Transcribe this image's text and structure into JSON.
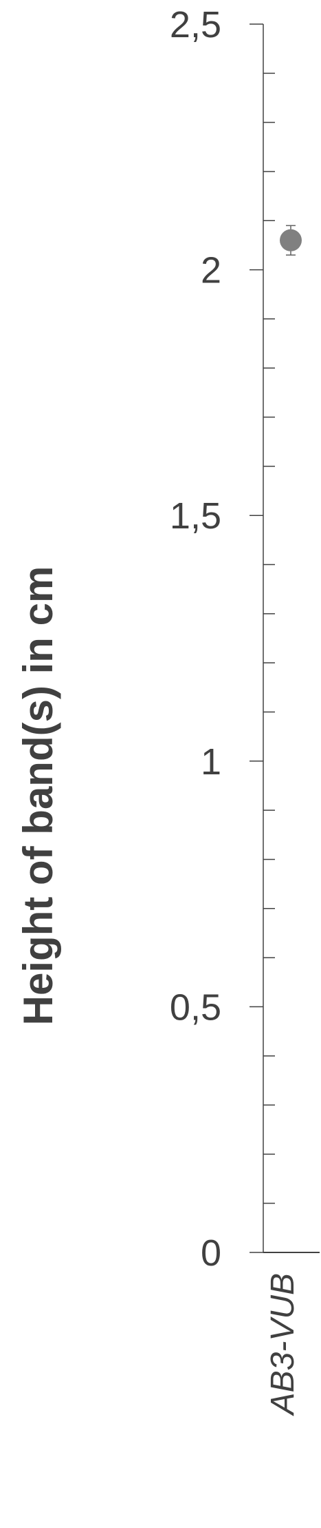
{
  "chart_data": {
    "type": "scatter",
    "title": "",
    "ylabel": "Height of band(s) in cm",
    "xlabel": "",
    "ylim": [
      0,
      2.5
    ],
    "y_major_step": 0.5,
    "y_minor_step": 0.1,
    "y_tick_labels": [
      "0",
      "0,5",
      "1",
      "1,5",
      "2",
      "2,5"
    ],
    "categories": [
      "AB3-VUB"
    ],
    "series": [
      {
        "values": [
          2.06
        ],
        "error": [
          0.03
        ],
        "color": "#808080"
      }
    ],
    "grid": false,
    "legend": "none"
  }
}
